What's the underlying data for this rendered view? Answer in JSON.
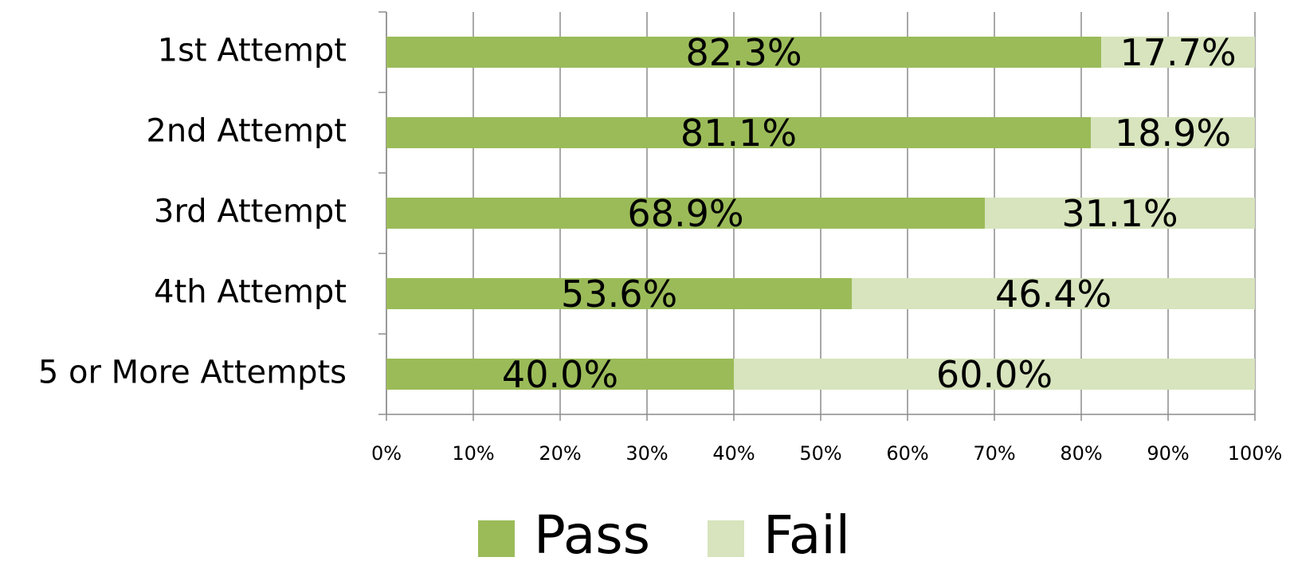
{
  "chart_data": {
    "type": "stacked_barh",
    "categories": [
      "1st Attempt",
      "2nd Attempt",
      "3rd Attempt",
      "4th Attempt",
      "5 or More Attempts"
    ],
    "series": [
      {
        "name": "Pass",
        "color": "#9bbb59",
        "values": [
          82.3,
          81.1,
          68.9,
          53.6,
          40.0
        ],
        "value_labels": [
          "82.3%",
          "81.1%",
          "68.9%",
          "53.6%",
          "40.0%"
        ]
      },
      {
        "name": "Fail",
        "color": "#d7e4bd",
        "values": [
          17.7,
          18.9,
          31.1,
          46.4,
          60.0
        ],
        "value_labels": [
          "17.7%",
          "18.9%",
          "31.1%",
          "46.4%",
          "60.0%"
        ]
      }
    ],
    "xlim": [
      0,
      100
    ],
    "xticks": [
      {
        "value": 0,
        "label": "0%"
      },
      {
        "value": 10,
        "label": "10%"
      },
      {
        "value": 20,
        "label": "20%"
      },
      {
        "value": 30,
        "label": "30%"
      },
      {
        "value": 40,
        "label": "40%"
      },
      {
        "value": 50,
        "label": "50%"
      },
      {
        "value": 60,
        "label": "60%"
      },
      {
        "value": 70,
        "label": "70%"
      },
      {
        "value": 80,
        "label": "80%"
      },
      {
        "value": 90,
        "label": "90%"
      },
      {
        "value": 100,
        "label": "100%"
      }
    ],
    "grid": true,
    "legend": "bottom"
  }
}
